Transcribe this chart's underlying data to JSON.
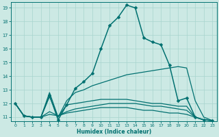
{
  "xlabel": "Humidex (Indice chaleur)",
  "xlim": [
    -0.5,
    23.5
  ],
  "ylim": [
    10.7,
    19.4
  ],
  "yticks": [
    11,
    12,
    13,
    14,
    15,
    16,
    17,
    18,
    19
  ],
  "xticks": [
    0,
    1,
    2,
    3,
    4,
    5,
    6,
    7,
    8,
    9,
    10,
    11,
    12,
    13,
    14,
    15,
    16,
    17,
    18,
    19,
    20,
    21,
    22,
    23
  ],
  "background_color": "#cce9e4",
  "grid_color": "#a8d4ce",
  "line_color": "#007070",
  "lines": [
    {
      "x": [
        0,
        1,
        2,
        3,
        4,
        5,
        6,
        7,
        8,
        9,
        10,
        11,
        12,
        13,
        14,
        15,
        16,
        17,
        18,
        19,
        20,
        21,
        22,
        23
      ],
      "y": [
        12.0,
        11.1,
        11.0,
        11.0,
        12.6,
        10.8,
        11.9,
        13.1,
        13.6,
        14.2,
        16.0,
        17.7,
        18.3,
        19.2,
        19.0,
        16.8,
        16.5,
        16.3,
        14.8,
        12.2,
        12.4,
        11.0,
        10.8,
        10.75
      ],
      "marker": "D",
      "markersize": 2.5,
      "linewidth": 1.1
    },
    {
      "x": [
        0,
        1,
        2,
        3,
        4,
        5,
        6,
        7,
        8,
        9,
        10,
        11,
        12,
        13,
        14,
        15,
        16,
        17,
        18,
        19,
        20,
        21,
        22,
        23
      ],
      "y": [
        12.0,
        11.1,
        11.0,
        11.0,
        12.8,
        11.0,
        12.2,
        12.8,
        13.0,
        13.3,
        13.5,
        13.7,
        13.9,
        14.1,
        14.2,
        14.3,
        14.4,
        14.5,
        14.6,
        14.7,
        14.6,
        12.2,
        11.0,
        10.75
      ],
      "marker": null,
      "markersize": 0,
      "linewidth": 0.9
    },
    {
      "x": [
        0,
        1,
        2,
        3,
        4,
        5,
        6,
        7,
        8,
        9,
        10,
        11,
        12,
        13,
        14,
        15,
        16,
        17,
        18,
        19,
        20,
        21,
        22,
        23
      ],
      "y": [
        12.0,
        11.1,
        11.0,
        11.0,
        12.5,
        11.0,
        11.9,
        12.0,
        12.1,
        12.2,
        12.3,
        12.3,
        12.3,
        12.3,
        12.2,
        12.1,
        12.0,
        12.0,
        11.9,
        11.8,
        11.8,
        11.0,
        10.8,
        10.75
      ],
      "marker": null,
      "markersize": 0,
      "linewidth": 0.9
    },
    {
      "x": [
        0,
        1,
        2,
        3,
        4,
        5,
        6,
        7,
        8,
        9,
        10,
        11,
        12,
        13,
        14,
        15,
        16,
        17,
        18,
        19,
        20,
        21,
        22,
        23
      ],
      "y": [
        12.0,
        11.1,
        11.0,
        11.0,
        11.4,
        11.1,
        11.4,
        11.6,
        11.7,
        11.8,
        11.9,
        12.0,
        12.0,
        12.0,
        12.0,
        11.9,
        11.8,
        11.8,
        11.7,
        11.6,
        11.5,
        11.0,
        10.8,
        10.75
      ],
      "marker": null,
      "markersize": 0,
      "linewidth": 0.9
    },
    {
      "x": [
        0,
        1,
        2,
        3,
        4,
        5,
        6,
        7,
        8,
        9,
        10,
        11,
        12,
        13,
        14,
        15,
        16,
        17,
        18,
        19,
        20,
        21,
        22,
        23
      ],
      "y": [
        12.0,
        11.1,
        11.0,
        11.0,
        11.2,
        11.1,
        11.3,
        11.4,
        11.5,
        11.6,
        11.7,
        11.7,
        11.7,
        11.7,
        11.6,
        11.5,
        11.5,
        11.4,
        11.3,
        11.3,
        11.2,
        11.0,
        10.8,
        10.75
      ],
      "marker": null,
      "markersize": 0,
      "linewidth": 0.9
    }
  ]
}
